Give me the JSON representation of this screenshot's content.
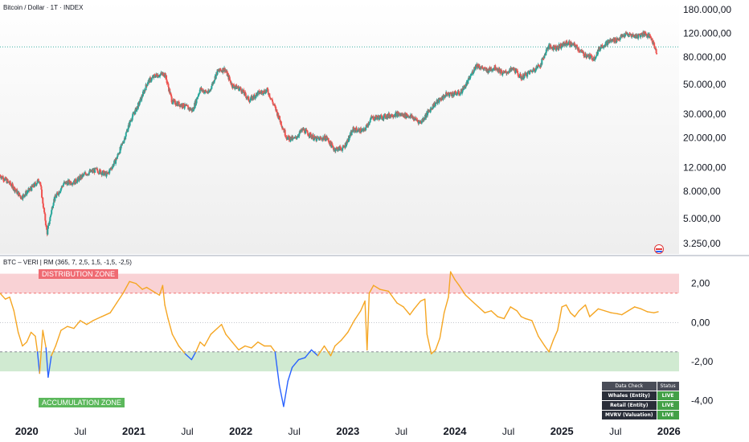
{
  "header": {
    "symbol_title": "Bitcoin / Dollar · 1T · INDEX",
    "indicator_title": "BTC – VERI | RM (365, 7, 2,5, 1,5, -1,5, -2,5)"
  },
  "colors": {
    "up_candle": "#26a69a",
    "down_candle": "#ef5350",
    "oscillator_normal": "#f5a623",
    "oscillator_low": "#2962ff",
    "distribution_band": "#f8c7cb",
    "accumulation_band": "#c8e6c9",
    "live_badge": "#43a047"
  },
  "zones": {
    "distribution_label": "DISTRIBUTION ZONE",
    "accumulation_label": "ACCUMULATION ZONE"
  },
  "status_table": {
    "headers": [
      "Data Check",
      "Status"
    ],
    "rows": [
      {
        "name": "Whales (Entity)",
        "status": "LIVE"
      },
      {
        "name": "Retail (Entity)",
        "status": "LIVE"
      },
      {
        "name": "MVRV (Valuation)",
        "status": "LIVE"
      }
    ]
  },
  "icons": {
    "flag": "us-flag-icon"
  },
  "chart_data": [
    {
      "type": "candlestick",
      "series": [
        {
          "name": "Bitcoin / Dollar"
        }
      ],
      "y_scale": "log",
      "ylim": [
        2800,
        190000
      ],
      "xlim": [
        2019.75,
        2026.0
      ],
      "y_ticks": [
        "180.000,00",
        "120.000,00",
        "80.000,00",
        "50.000,00",
        "30.000,00",
        "20.000,00",
        "12.000,00",
        "8.000,00",
        "5.000,00",
        "3.250,00"
      ],
      "y_tick_values": [
        180000,
        120000,
        80000,
        50000,
        30000,
        20000,
        12000,
        8000,
        5000,
        3250
      ],
      "reference_line": 95000,
      "price_path": [
        [
          2019.75,
          10500
        ],
        [
          2019.85,
          9000
        ],
        [
          2019.95,
          7200
        ],
        [
          2020.05,
          8500
        ],
        [
          2020.12,
          9800
        ],
        [
          2020.19,
          3900
        ],
        [
          2020.25,
          6800
        ],
        [
          2020.35,
          9200
        ],
        [
          2020.45,
          9400
        ],
        [
          2020.55,
          10800
        ],
        [
          2020.65,
          11500
        ],
        [
          2020.75,
          10600
        ],
        [
          2020.83,
          13500
        ],
        [
          2020.9,
          18500
        ],
        [
          2020.97,
          27000
        ],
        [
          2021.05,
          36000
        ],
        [
          2021.13,
          52000
        ],
        [
          2021.2,
          58000
        ],
        [
          2021.29,
          60000
        ],
        [
          2021.36,
          37000
        ],
        [
          2021.45,
          35000
        ],
        [
          2021.55,
          32000
        ],
        [
          2021.62,
          46000
        ],
        [
          2021.7,
          43000
        ],
        [
          2021.78,
          62000
        ],
        [
          2021.85,
          65000
        ],
        [
          2021.92,
          49000
        ],
        [
          2022.0,
          46000
        ],
        [
          2022.08,
          38000
        ],
        [
          2022.16,
          43000
        ],
        [
          2022.25,
          45000
        ],
        [
          2022.33,
          32000
        ],
        [
          2022.43,
          20000
        ],
        [
          2022.5,
          19500
        ],
        [
          2022.58,
          23000
        ],
        [
          2022.7,
          19500
        ],
        [
          2022.8,
          20000
        ],
        [
          2022.87,
          16500
        ],
        [
          2022.96,
          16700
        ],
        [
          2023.05,
          23000
        ],
        [
          2023.15,
          22500
        ],
        [
          2023.22,
          28000
        ],
        [
          2023.32,
          28500
        ],
        [
          2023.45,
          30000
        ],
        [
          2023.58,
          29000
        ],
        [
          2023.68,
          26000
        ],
        [
          2023.8,
          35000
        ],
        [
          2023.92,
          42000
        ],
        [
          2024.05,
          43000
        ],
        [
          2024.12,
          52000
        ],
        [
          2024.2,
          70000
        ],
        [
          2024.3,
          63000
        ],
        [
          2024.38,
          67000
        ],
        [
          2024.45,
          60000
        ],
        [
          2024.55,
          65000
        ],
        [
          2024.62,
          56000
        ],
        [
          2024.72,
          63000
        ],
        [
          2024.8,
          70000
        ],
        [
          2024.87,
          95000
        ],
        [
          2024.96,
          94000
        ],
        [
          2025.05,
          102000
        ],
        [
          2025.13,
          96000
        ],
        [
          2025.2,
          84000
        ],
        [
          2025.3,
          78000
        ],
        [
          2025.36,
          95000
        ],
        [
          2025.45,
          105000
        ],
        [
          2025.52,
          108000
        ],
        [
          2025.6,
          118000
        ],
        [
          2025.7,
          114000
        ],
        [
          2025.77,
          120000
        ],
        [
          2025.83,
          112000
        ],
        [
          2025.89,
          86000
        ]
      ]
    },
    {
      "type": "line",
      "title": "",
      "series": [
        {
          "name": "BTC – VERI | RM"
        }
      ],
      "ylim": [
        -4.8,
        3.1
      ],
      "y_ticks": [
        "2,00",
        "0,00",
        "-2,00",
        "-4,00"
      ],
      "y_tick_values": [
        2,
        0,
        -2,
        -4
      ],
      "distribution_zone": [
        1.5,
        2.5
      ],
      "accumulation_zone": [
        -2.5,
        -1.5
      ],
      "low_threshold": -1.5,
      "x_tick_labels": [
        "2020",
        "Jul",
        "2021",
        "Jul",
        "2022",
        "Jul",
        "2023",
        "Jul",
        "2024",
        "Jul",
        "2025",
        "Jul",
        "2026"
      ],
      "x_tick_values": [
        2020.0,
        2020.5,
        2021.0,
        2021.5,
        2022.0,
        2022.5,
        2023.0,
        2023.5,
        2024.0,
        2024.5,
        2025.0,
        2025.5,
        2026.0
      ],
      "values": [
        [
          2019.75,
          1.5
        ],
        [
          2019.8,
          1.2
        ],
        [
          2019.84,
          1.3
        ],
        [
          2019.88,
          0.6
        ],
        [
          2019.92,
          -0.5
        ],
        [
          2019.96,
          -1.2
        ],
        [
          2020.0,
          -1.0
        ],
        [
          2020.04,
          -0.5
        ],
        [
          2020.08,
          -0.7
        ],
        [
          2020.1,
          -1.5
        ],
        [
          2020.12,
          -2.6
        ],
        [
          2020.15,
          -0.4
        ],
        [
          2020.18,
          -1.3
        ],
        [
          2020.2,
          -2.8
        ],
        [
          2020.23,
          -1.7
        ],
        [
          2020.27,
          -1.2
        ],
        [
          2020.32,
          -0.4
        ],
        [
          2020.38,
          -0.2
        ],
        [
          2020.44,
          -0.3
        ],
        [
          2020.5,
          0.1
        ],
        [
          2020.56,
          -0.1
        ],
        [
          2020.62,
          0.1
        ],
        [
          2020.7,
          0.3
        ],
        [
          2020.78,
          0.5
        ],
        [
          2020.84,
          1.0
        ],
        [
          2020.9,
          1.5
        ],
        [
          2020.96,
          2.1
        ],
        [
          2021.02,
          2.0
        ],
        [
          2021.08,
          1.7
        ],
        [
          2021.12,
          1.8
        ],
        [
          2021.18,
          1.6
        ],
        [
          2021.24,
          1.4
        ],
        [
          2021.27,
          1.9
        ],
        [
          2021.29,
          0.9
        ],
        [
          2021.32,
          0.2
        ],
        [
          2021.36,
          -0.6
        ],
        [
          2021.42,
          -1.2
        ],
        [
          2021.48,
          -1.6
        ],
        [
          2021.54,
          -1.9
        ],
        [
          2021.58,
          -1.5
        ],
        [
          2021.62,
          -1.0
        ],
        [
          2021.66,
          -1.2
        ],
        [
          2021.72,
          -0.6
        ],
        [
          2021.78,
          -0.3
        ],
        [
          2021.82,
          -0.1
        ],
        [
          2021.86,
          -0.6
        ],
        [
          2021.92,
          -1.0
        ],
        [
          2021.98,
          -1.4
        ],
        [
          2022.04,
          -1.2
        ],
        [
          2022.1,
          -1.3
        ],
        [
          2022.16,
          -1.0
        ],
        [
          2022.22,
          -1.2
        ],
        [
          2022.28,
          -1.2
        ],
        [
          2022.32,
          -1.5
        ],
        [
          2022.36,
          -3.2
        ],
        [
          2022.4,
          -4.3
        ],
        [
          2022.44,
          -3.0
        ],
        [
          2022.48,
          -2.3
        ],
        [
          2022.54,
          -1.9
        ],
        [
          2022.6,
          -1.8
        ],
        [
          2022.66,
          -1.4
        ],
        [
          2022.72,
          -1.7
        ],
        [
          2022.78,
          -1.2
        ],
        [
          2022.84,
          -1.7
        ],
        [
          2022.88,
          -1.2
        ],
        [
          2022.94,
          -0.9
        ],
        [
          2023.0,
          -0.5
        ],
        [
          2023.06,
          0.1
        ],
        [
          2023.12,
          0.6
        ],
        [
          2023.16,
          1.1
        ],
        [
          2023.18,
          -1.4
        ],
        [
          2023.2,
          1.5
        ],
        [
          2023.24,
          1.9
        ],
        [
          2023.3,
          1.7
        ],
        [
          2023.38,
          1.6
        ],
        [
          2023.46,
          1.0
        ],
        [
          2023.52,
          0.8
        ],
        [
          2023.58,
          0.4
        ],
        [
          2023.62,
          0.7
        ],
        [
          2023.68,
          1.1
        ],
        [
          2023.72,
          1.2
        ],
        [
          2023.74,
          -0.6
        ],
        [
          2023.78,
          -1.6
        ],
        [
          2023.82,
          -1.4
        ],
        [
          2023.86,
          -0.8
        ],
        [
          2023.9,
          0.5
        ],
        [
          2023.94,
          1.3
        ],
        [
          2023.96,
          2.6
        ],
        [
          2024.0,
          2.2
        ],
        [
          2024.04,
          1.9
        ],
        [
          2024.1,
          1.4
        ],
        [
          2024.16,
          1.1
        ],
        [
          2024.22,
          0.8
        ],
        [
          2024.28,
          0.5
        ],
        [
          2024.34,
          0.6
        ],
        [
          2024.4,
          0.3
        ],
        [
          2024.46,
          0.2
        ],
        [
          2024.52,
          0.8
        ],
        [
          2024.58,
          0.6
        ],
        [
          2024.62,
          0.3
        ],
        [
          2024.66,
          0.2
        ],
        [
          2024.72,
          0.1
        ],
        [
          2024.78,
          -0.7
        ],
        [
          2024.84,
          -1.2
        ],
        [
          2024.88,
          -1.5
        ],
        [
          2024.92,
          -0.9
        ],
        [
          2024.96,
          -0.4
        ],
        [
          2025.0,
          0.8
        ],
        [
          2025.04,
          0.9
        ],
        [
          2025.08,
          0.5
        ],
        [
          2025.12,
          0.3
        ],
        [
          2025.16,
          0.6
        ],
        [
          2025.22,
          0.9
        ],
        [
          2025.26,
          0.3
        ],
        [
          2025.3,
          0.5
        ],
        [
          2025.34,
          0.7
        ],
        [
          2025.4,
          0.6
        ],
        [
          2025.46,
          0.5
        ],
        [
          2025.52,
          0.45
        ],
        [
          2025.56,
          0.4
        ],
        [
          2025.62,
          0.6
        ],
        [
          2025.68,
          0.8
        ],
        [
          2025.74,
          0.7
        ],
        [
          2025.8,
          0.55
        ],
        [
          2025.86,
          0.5
        ],
        [
          2025.9,
          0.55
        ]
      ]
    }
  ]
}
